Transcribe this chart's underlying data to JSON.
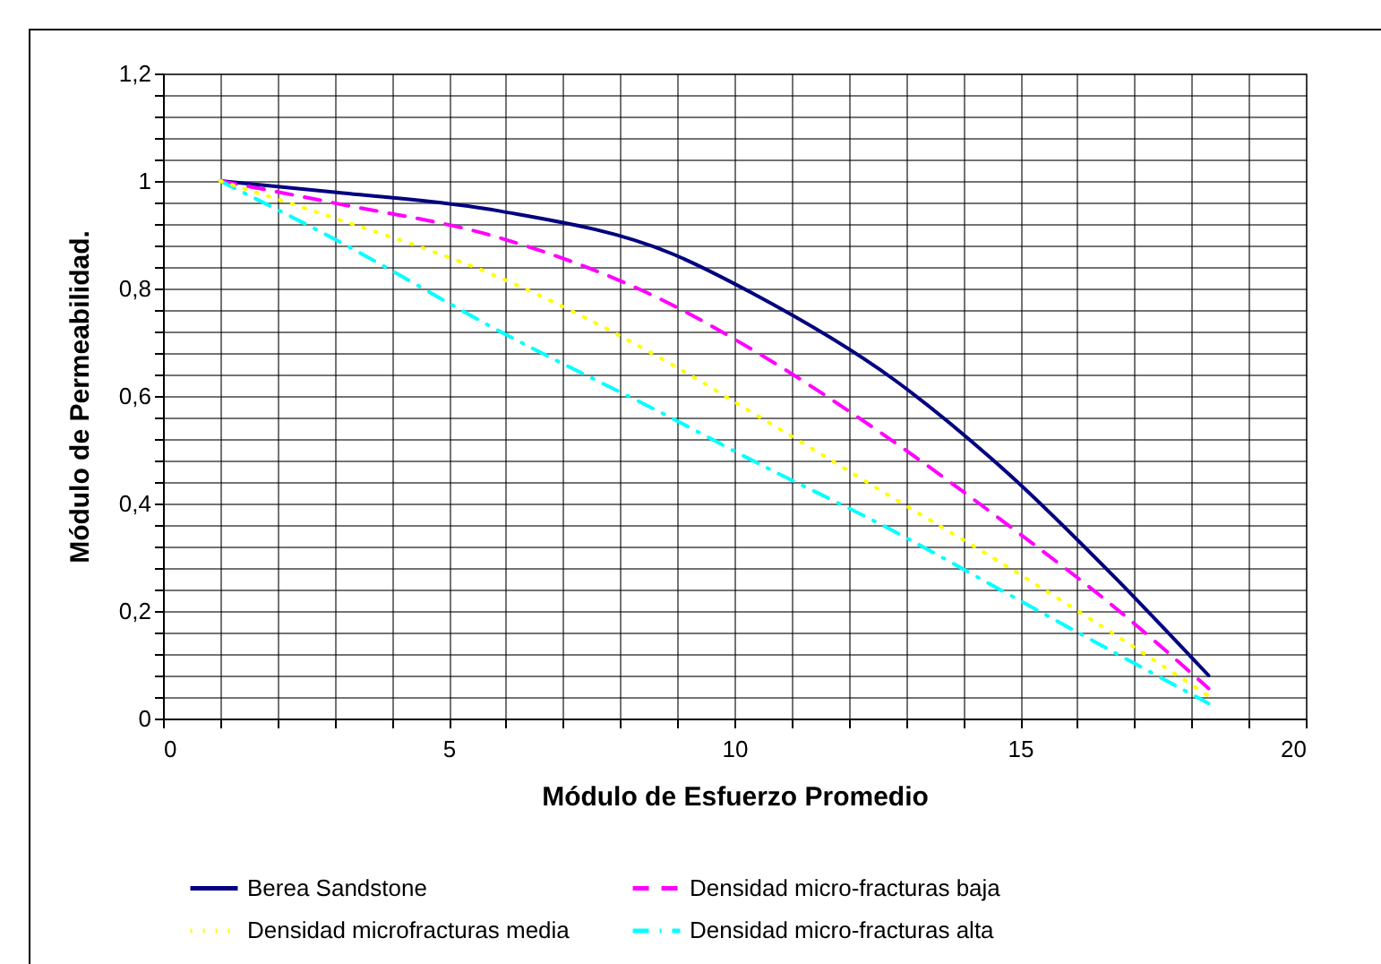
{
  "chart_data": {
    "type": "line",
    "xlabel": "Módulo de Esfuerzo Promedio",
    "ylabel": "Módulo de Permeabilidad.",
    "x": [
      1,
      3,
      5.9,
      8.9,
      10.3,
      12.8,
      14.8,
      16.7,
      18.3
    ],
    "series": [
      {
        "name": "Berea Sandstone",
        "color": "#000080",
        "line_style": "solid",
        "values": [
          1,
          0.979,
          0.944,
          0.865,
          0.792,
          0.63,
          0.455,
          0.258,
          0.08
        ]
      },
      {
        "name": "Densidad micro-fracturas baja",
        "color": "#ff00ff",
        "line_style": "dashed",
        "values": [
          1,
          0.959,
          0.894,
          0.77,
          0.687,
          0.514,
          0.359,
          0.203,
          0.056
        ]
      },
      {
        "name": "Densidad microfracturas media",
        "color": "#ffff00",
        "line_style": "dotted",
        "values": [
          1,
          0.931,
          0.82,
          0.659,
          0.57,
          0.409,
          0.281,
          0.153,
          0.042
        ]
      },
      {
        "name": "Densidad micro-fracturas alta",
        "color": "#00ffff",
        "line_style": "dashdot",
        "values": [
          1,
          0.892,
          0.72,
          0.559,
          0.481,
          0.348,
          0.231,
          0.12,
          0.028
        ]
      }
    ],
    "xlim": [
      0,
      20
    ],
    "xticks": [
      0,
      {
        "value": 1,
        "label": null
      },
      {
        "value": 2,
        "label": null
      },
      {
        "value": 3,
        "label": null
      },
      {
        "value": 4,
        "label": null
      },
      5,
      {
        "value": 6,
        "label": null
      },
      {
        "value": 7,
        "label": null
      },
      {
        "value": 8,
        "label": null
      },
      {
        "value": 9,
        "label": null
      },
      10,
      {
        "value": 11,
        "label": null
      },
      {
        "value": 12,
        "label": null
      },
      {
        "value": 13,
        "label": null
      },
      {
        "value": 14,
        "label": null
      },
      15,
      {
        "value": 16,
        "label": null
      },
      {
        "value": 17,
        "label": null
      },
      {
        "value": 18,
        "label": null
      },
      {
        "value": 19,
        "label": null
      },
      20
    ],
    "ylim": [
      0,
      1.2
    ],
    "yticks": [
      0,
      {
        "value": 0.04,
        "label": null
      },
      {
        "value": 0.08,
        "label": null
      },
      {
        "value": 0.12,
        "label": null
      },
      {
        "value": 0.16,
        "label": null
      },
      {
        "value": 0.2,
        "label": "0,2"
      },
      {
        "value": 0.24,
        "label": null
      },
      {
        "value": 0.28,
        "label": null
      },
      {
        "value": 0.32,
        "label": null
      },
      {
        "value": 0.36,
        "label": null
      },
      {
        "value": 0.4,
        "label": "0,4"
      },
      {
        "value": 0.44,
        "label": null
      },
      {
        "value": 0.48,
        "label": null
      },
      {
        "value": 0.52,
        "label": null
      },
      {
        "value": 0.56,
        "label": null
      },
      {
        "value": 0.6,
        "label": "0,6"
      },
      {
        "value": 0.64,
        "label": null
      },
      {
        "value": 0.68,
        "label": null
      },
      {
        "value": 0.72,
        "label": null
      },
      {
        "value": 0.76,
        "label": null
      },
      {
        "value": 0.8,
        "label": "0,8"
      },
      {
        "value": 0.84,
        "label": null
      },
      {
        "value": 0.88,
        "label": null
      },
      {
        "value": 0.92,
        "label": null
      },
      {
        "value": 0.96,
        "label": null
      },
      1,
      {
        "value": 1.04,
        "label": null
      },
      {
        "value": 1.08,
        "label": null
      },
      {
        "value": 1.12,
        "label": null
      },
      {
        "value": 1.16,
        "label": null
      },
      {
        "value": 1.2,
        "label": "1,2"
      }
    ],
    "grid": true,
    "legend": "bottom",
    "marker": "none"
  }
}
